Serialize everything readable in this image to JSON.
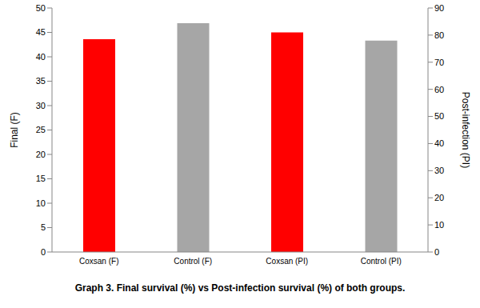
{
  "chart_data": {
    "type": "bar",
    "title": "Graph 3. Final survival (%) vs Post-infection survival (%) of both groups.",
    "categories": [
      "Coxsan (F)",
      "Control (F)",
      "Coxsan (PI)",
      "Control (PI)"
    ],
    "colors": [
      "#ff0000",
      "#a6a6a6",
      "#ff0000",
      "#a6a6a6"
    ],
    "series": [
      {
        "values": [
          43.6,
          46.9,
          null,
          null
        ]
      },
      {
        "values": [
          null,
          null,
          81,
          78
        ],
        "axis": "y2"
      }
    ],
    "y_label": "Final (F)",
    "y2_label": "Post-infection (PI)",
    "ylim": [
      0,
      50
    ],
    "yticks": [
      0,
      5,
      10,
      15,
      20,
      25,
      30,
      35,
      40,
      45,
      50
    ],
    "y2lim": [
      0,
      90
    ],
    "y2ticks": [
      0,
      10,
      20,
      30,
      40,
      50,
      60,
      70,
      80,
      90
    ],
    "grid": false
  }
}
